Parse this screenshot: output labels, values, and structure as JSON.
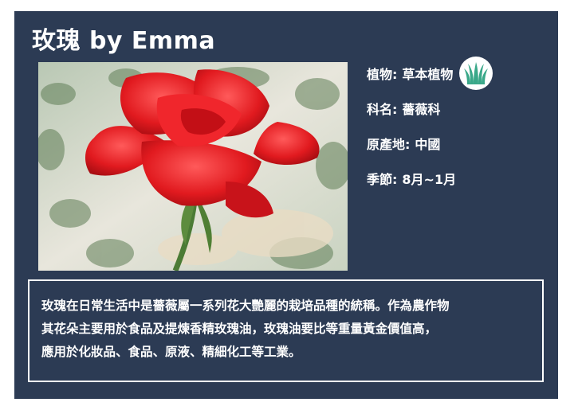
{
  "card": {
    "title": "玫瑰 by Emma",
    "photo_alt": "red rose",
    "info": [
      {
        "label": "植物:",
        "value": "草本植物",
        "icon": "grass-icon"
      },
      {
        "label": "科名:",
        "value": "薔薇科"
      },
      {
        "label": "原產地:",
        "value": "中國"
      },
      {
        "label": "季節:",
        "value": "8月~1月"
      }
    ],
    "description_lines": [
      "玫瑰在日常生活中是薔薇屬一系列花大艷麗的栽培品種的統稱。作為農作物",
      "其花朵主要用於食品及提煉香精玫瑰油，玫瑰油要比等重量黃金價值高，",
      "應用於化妝品、食品、原液、精細化工等工業。"
    ],
    "colors": {
      "card_bg": "#2c3b54",
      "text": "#ffffff",
      "badge_icon": "#3aa889"
    }
  }
}
